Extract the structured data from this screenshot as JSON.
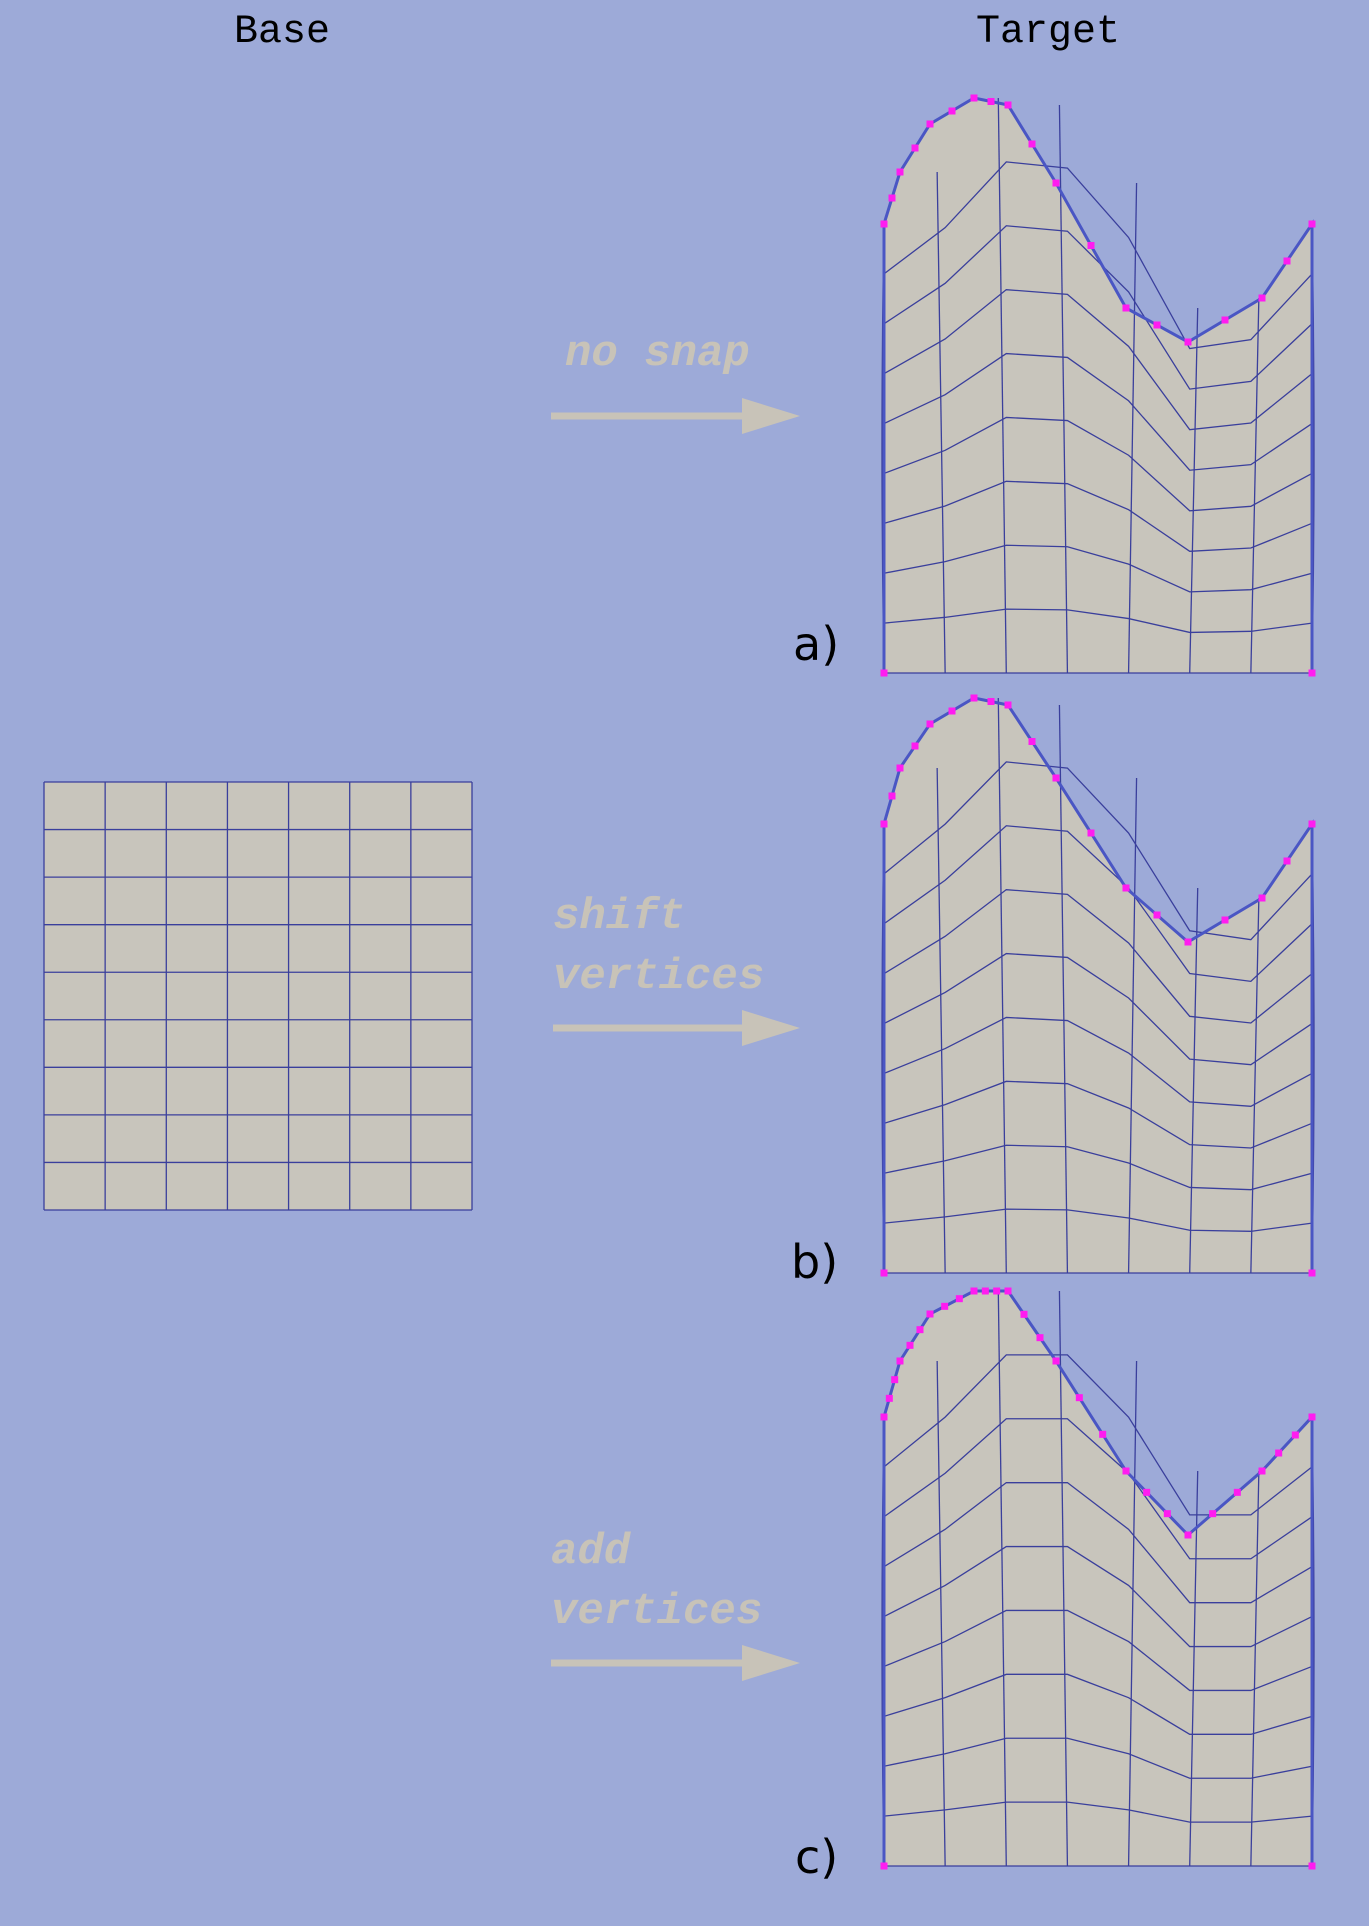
{
  "headers": {
    "base": "Base",
    "target": "Target"
  },
  "base_mesh": {
    "cols": 7,
    "rows": 9
  },
  "panels": [
    {
      "id": "a",
      "tag": "a)",
      "step_lines": [
        "no snap"
      ],
      "mode": "none"
    },
    {
      "id": "b",
      "tag": "b)",
      "step_lines": [
        "shift",
        "vertices"
      ],
      "mode": "shift"
    },
    {
      "id": "c",
      "tag": "c)",
      "step_lines": [
        "add",
        "vertices"
      ],
      "mode": "add"
    }
  ],
  "colors": {
    "background": "#9daad8",
    "mesh_fill": "#c8c5bc",
    "mesh_lines": "#3a3f9c",
    "outline": "#4a56c4",
    "vertex_marker": "#ff1cf0",
    "arrow_and_step_text": "#c8c3b8"
  }
}
